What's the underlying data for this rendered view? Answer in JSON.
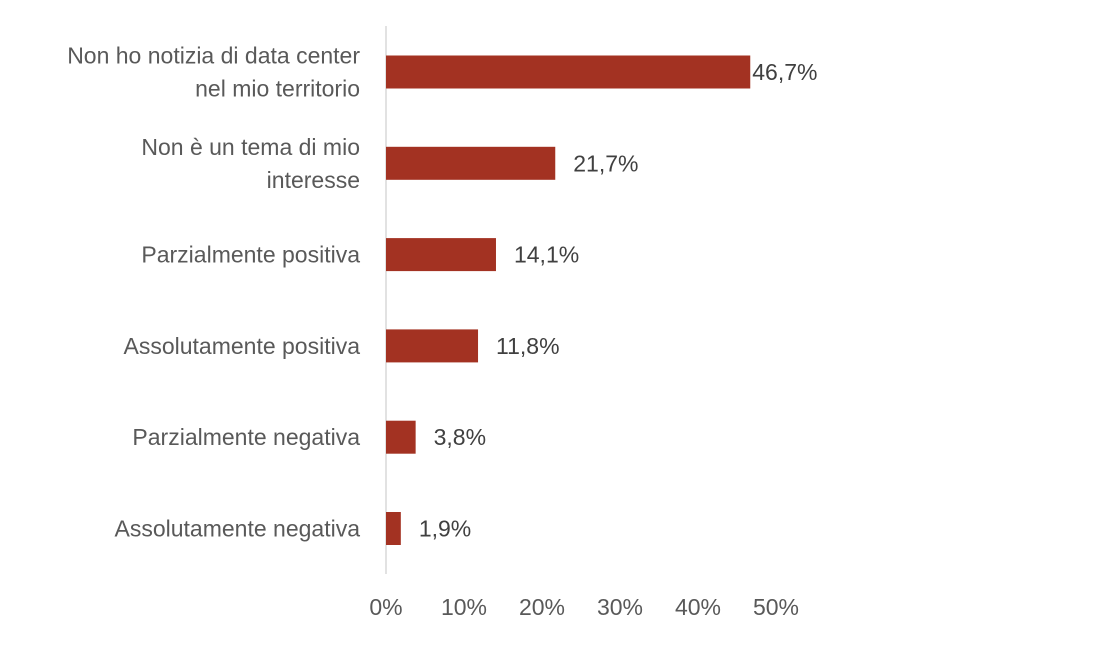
{
  "chart_data": {
    "type": "bar",
    "orientation": "horizontal",
    "title": "",
    "xlabel": "",
    "ylabel": "",
    "categories": [
      "Non ho notizia di data center nel mio territorio",
      "Non è un tema di mio interesse",
      "Parzialmente positiva",
      "Assolutamente positiva",
      "Parzialmente negativa",
      "Assolutamente negativa"
    ],
    "category_lines": [
      [
        "Non ho notizia di data center",
        "nel mio territorio"
      ],
      [
        "Non è un tema di mio",
        "interesse"
      ],
      [
        "Parzialmente positiva"
      ],
      [
        "Assolutamente positiva"
      ],
      [
        "Parzialmente negativa"
      ],
      [
        "Assolutamente negativa"
      ]
    ],
    "values": [
      46.7,
      21.7,
      14.1,
      11.8,
      3.8,
      1.9
    ],
    "data_labels": [
      "46,7%",
      "21,7%",
      "14,1%",
      "11,8%",
      "3,8%",
      "1,9%"
    ],
    "xlim": [
      0,
      50
    ],
    "ticks": [
      0,
      10,
      20,
      30,
      40,
      50
    ],
    "tick_labels": [
      "0%",
      "10%",
      "20%",
      "30%",
      "40%",
      "50%"
    ],
    "grid": false,
    "legend": "none",
    "bar_color": "#A33222",
    "axis_color": "#D9D9D9"
  }
}
